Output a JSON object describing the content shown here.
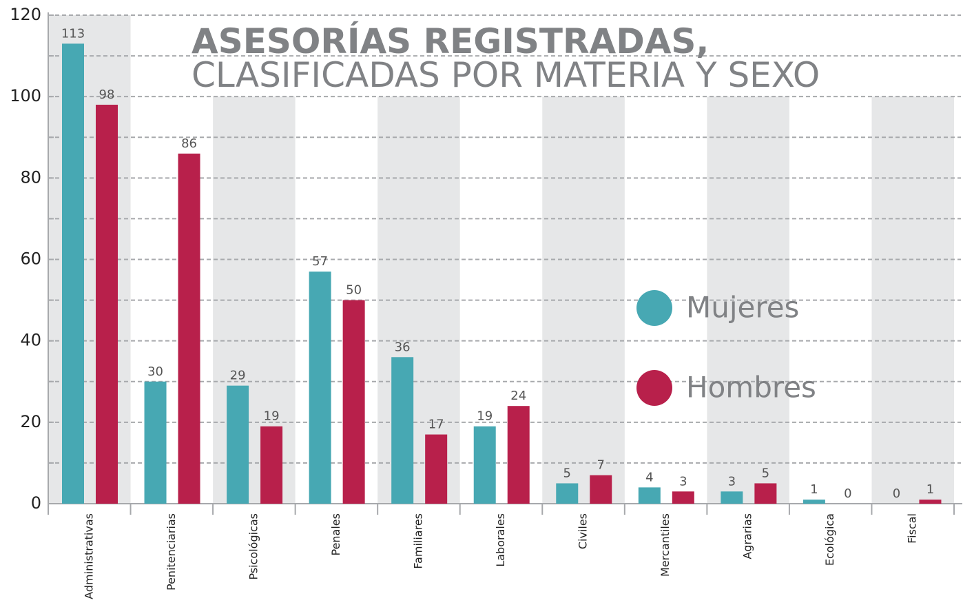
{
  "chart_data": {
    "type": "bar",
    "title": [
      "ASESORÍAS REGISTRADAS,",
      "CLASIFICADAS POR MATERIA Y SEXO"
    ],
    "categories": [
      "Administrativas",
      "Penitenciarias",
      "Psicológicas",
      "Penales",
      "Familiares",
      "Laborales",
      "Civiles",
      "Mercantiles",
      "Agrarias",
      "Ecológica",
      "Fiscal"
    ],
    "series": [
      {
        "name": "Mujeres",
        "color": "#47a8b3",
        "values": [
          113,
          30,
          29,
          57,
          36,
          19,
          5,
          4,
          3,
          1,
          0
        ]
      },
      {
        "name": "Hombres",
        "color": "#b8204b",
        "values": [
          98,
          86,
          19,
          50,
          17,
          24,
          7,
          3,
          5,
          0,
          1
        ]
      }
    ],
    "ylim": [
      0,
      120
    ],
    "yticks": [
      0,
      20,
      40,
      60,
      80,
      100,
      120
    ],
    "minor_yticks": [
      10,
      30,
      50,
      70,
      90,
      110
    ],
    "grid": true
  }
}
